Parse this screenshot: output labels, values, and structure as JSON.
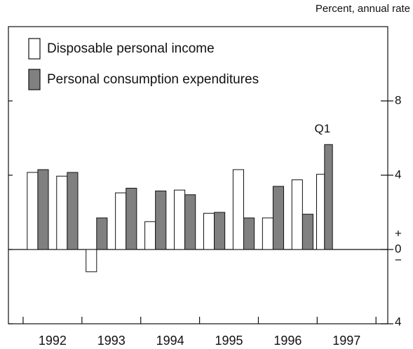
{
  "chart_data": {
    "type": "bar",
    "unit_label": "Percent, annual rate",
    "annotation": "Q1",
    "x": [
      1992.25,
      1992.75,
      1993.25,
      1993.75,
      1994.25,
      1994.75,
      1995.25,
      1995.75,
      1996.25,
      1996.75,
      1997.125
    ],
    "series": [
      {
        "name": "Disposable personal income",
        "color": "#ffffff",
        "values": [
          4.15,
          3.95,
          -1.2,
          3.05,
          1.5,
          3.2,
          1.95,
          4.3,
          1.7,
          3.75,
          4.05
        ]
      },
      {
        "name": "Personal consumption expenditures",
        "color": "#808080",
        "values": [
          4.3,
          4.15,
          1.7,
          3.3,
          3.15,
          2.95,
          2.0,
          1.7,
          3.4,
          1.9,
          5.65
        ]
      }
    ],
    "xlim": [
      1991.75,
      1998.2
    ],
    "xticks": [
      {
        "value": 1992.5,
        "label": "1992"
      },
      {
        "value": 1993.5,
        "label": "1993"
      },
      {
        "value": 1994.5,
        "label": "1994"
      },
      {
        "value": 1995.5,
        "label": "1995"
      },
      {
        "value": 1996.5,
        "label": "1996"
      },
      {
        "value": 1997.5,
        "label": "1997"
      }
    ],
    "x_minor_ticks": [
      1992,
      1993,
      1994,
      1995,
      1996,
      1997,
      1998
    ],
    "ylim": [
      -4,
      12
    ],
    "yticks": [
      {
        "value": -4,
        "label": "4"
      },
      0,
      4,
      8
    ],
    "zero_signs": [
      "+",
      "−"
    ],
    "legend": "upper left"
  }
}
